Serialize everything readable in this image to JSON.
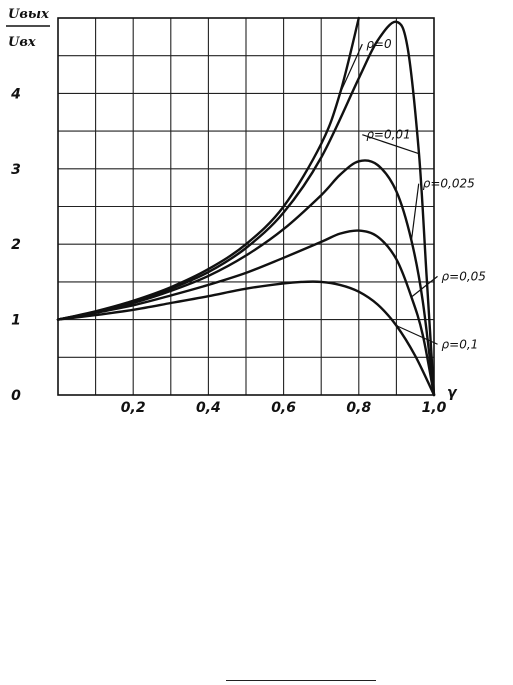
{
  "chart_data": {
    "type": "line",
    "title": "",
    "ylabel_numerator": "Uвых",
    "ylabel_denominator": "Uвх",
    "xlabel": "γ",
    "xlim": [
      0,
      1.0
    ],
    "ylim": [
      0,
      5
    ],
    "grid": true,
    "x_tick_labels": [
      {
        "value": 0.2,
        "label": "0,2"
      },
      {
        "value": 0.4,
        "label": "0,4"
      },
      {
        "value": 0.6,
        "label": "0,6"
      },
      {
        "value": 0.8,
        "label": "0,8"
      },
      {
        "value": 1.0,
        "label": "1,0"
      }
    ],
    "y_tick_labels": [
      {
        "value": 0,
        "label": "0"
      },
      {
        "value": 1,
        "label": "1"
      },
      {
        "value": 2,
        "label": "2"
      },
      {
        "value": 3,
        "label": "3"
      },
      {
        "value": 4,
        "label": "4"
      }
    ],
    "series": [
      {
        "name": "ρ=0",
        "label_xy": [
          0.82,
          4.6
        ],
        "x": [
          0,
          0.1,
          0.2,
          0.3,
          0.4,
          0.5,
          0.6,
          0.7,
          0.75,
          0.8
        ],
        "y": [
          1.0,
          1.11,
          1.25,
          1.43,
          1.67,
          2.0,
          2.5,
          3.33,
          4.0,
          5.0
        ]
      },
      {
        "name": "ρ=0,01",
        "label_xy": [
          0.82,
          3.4
        ],
        "x": [
          0,
          0.1,
          0.2,
          0.3,
          0.4,
          0.5,
          0.6,
          0.7,
          0.8,
          0.85,
          0.9,
          0.93,
          0.96,
          0.98,
          1.0
        ],
        "y": [
          1.0,
          1.1,
          1.24,
          1.41,
          1.63,
          1.95,
          2.42,
          3.15,
          4.2,
          4.7,
          4.95,
          4.6,
          3.2,
          1.6,
          0.0
        ]
      },
      {
        "name": "ρ=0,025",
        "label_xy": [
          0.97,
          2.75
        ],
        "x": [
          0,
          0.1,
          0.2,
          0.3,
          0.4,
          0.5,
          0.6,
          0.7,
          0.75,
          0.8,
          0.85,
          0.9,
          0.94,
          0.97,
          1.0
        ],
        "y": [
          1.0,
          1.1,
          1.22,
          1.38,
          1.58,
          1.85,
          2.2,
          2.65,
          2.92,
          3.1,
          3.05,
          2.7,
          2.05,
          1.25,
          0.0
        ]
      },
      {
        "name": "ρ=0,05",
        "label_xy": [
          1.02,
          1.52
        ],
        "x": [
          0,
          0.1,
          0.2,
          0.3,
          0.4,
          0.5,
          0.6,
          0.7,
          0.75,
          0.8,
          0.85,
          0.9,
          0.94,
          0.97,
          1.0
        ],
        "y": [
          1.0,
          1.09,
          1.19,
          1.32,
          1.46,
          1.62,
          1.82,
          2.03,
          2.14,
          2.18,
          2.1,
          1.8,
          1.3,
          0.8,
          0.0
        ]
      },
      {
        "name": "ρ=0,1",
        "label_xy": [
          1.02,
          0.62
        ],
        "x": [
          0,
          0.1,
          0.2,
          0.3,
          0.4,
          0.5,
          0.6,
          0.65,
          0.7,
          0.75,
          0.8,
          0.85,
          0.9,
          0.95,
          1.0
        ],
        "y": [
          1.0,
          1.06,
          1.13,
          1.22,
          1.31,
          1.41,
          1.48,
          1.5,
          1.5,
          1.46,
          1.37,
          1.2,
          0.92,
          0.52,
          0.0
        ]
      }
    ]
  }
}
